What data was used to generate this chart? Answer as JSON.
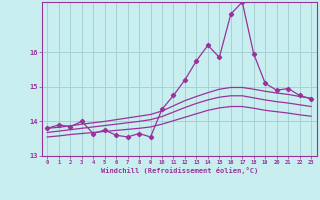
{
  "xlabel": "Windchill (Refroidissement éolien,°C)",
  "background_color": "#c8eef0",
  "grid_color": "#a0cdd0",
  "line_color": "#993399",
  "x_hours": [
    0,
    1,
    2,
    3,
    4,
    5,
    6,
    7,
    8,
    9,
    10,
    11,
    12,
    13,
    14,
    15,
    16,
    17,
    18,
    19,
    20,
    21,
    22,
    23
  ],
  "windchill": [
    13.8,
    13.9,
    13.85,
    14.0,
    13.65,
    13.75,
    13.6,
    13.55,
    13.65,
    13.55,
    14.35,
    14.75,
    15.2,
    15.75,
    16.2,
    15.85,
    17.1,
    17.45,
    15.95,
    15.1,
    14.9,
    14.95,
    14.75,
    14.65
  ],
  "smooth_upper": [
    13.8,
    13.83,
    13.87,
    13.92,
    13.96,
    14.0,
    14.05,
    14.1,
    14.15,
    14.2,
    14.3,
    14.45,
    14.6,
    14.72,
    14.83,
    14.93,
    14.98,
    14.98,
    14.93,
    14.87,
    14.82,
    14.78,
    14.72,
    14.67
  ],
  "smooth_mid": [
    13.68,
    13.72,
    13.76,
    13.8,
    13.84,
    13.88,
    13.92,
    13.96,
    14.0,
    14.05,
    14.14,
    14.27,
    14.4,
    14.52,
    14.62,
    14.7,
    14.74,
    14.74,
    14.68,
    14.62,
    14.57,
    14.53,
    14.48,
    14.43
  ],
  "smooth_lower": [
    13.55,
    13.58,
    13.62,
    13.65,
    13.68,
    13.71,
    13.74,
    13.77,
    13.8,
    13.84,
    13.92,
    14.02,
    14.12,
    14.22,
    14.32,
    14.39,
    14.43,
    14.43,
    14.38,
    14.32,
    14.28,
    14.24,
    14.19,
    14.15
  ],
  "ylim": [
    13.0,
    17.45
  ],
  "yticks": [
    13,
    14,
    15,
    16
  ],
  "xtick_labels": [
    "0",
    "1",
    "2",
    "3",
    "4",
    "5",
    "6",
    "7",
    "8",
    "9",
    "10",
    "11",
    "12",
    "13",
    "14",
    "15",
    "16",
    "17",
    "18",
    "19",
    "20",
    "21",
    "22",
    "23"
  ]
}
